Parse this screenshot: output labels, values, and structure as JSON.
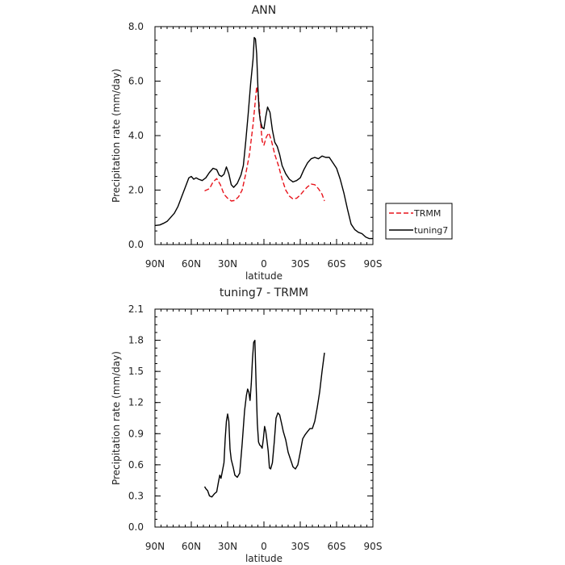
{
  "chart_data": [
    {
      "type": "line",
      "title": "ANN",
      "xlabel": "latitude",
      "ylabel": "Precipitation rate (mm/day)",
      "xlim": [
        90,
        -90
      ],
      "ylim": [
        0,
        8
      ],
      "x_ticks": [
        90,
        60,
        30,
        0,
        -30,
        -60,
        -90
      ],
      "x_tick_labels": [
        "90N",
        "60N",
        "30N",
        "0",
        "30S",
        "60S",
        "90S"
      ],
      "y_ticks": [
        0,
        2,
        4,
        6,
        8
      ],
      "y_tick_labels": [
        "0.0",
        "2.0",
        "4.0",
        "6.0",
        "8.0"
      ],
      "legend_position": "right",
      "series": [
        {
          "name": "TRMM",
          "color": "#e8141c",
          "dash": "dashed",
          "points": [
            [
              49,
              1.97
            ],
            [
              45,
              2.05
            ],
            [
              42,
              2.3
            ],
            [
              39,
              2.42
            ],
            [
              36,
              2.2
            ],
            [
              33,
              1.85
            ],
            [
              30,
              1.7
            ],
            [
              27,
              1.6
            ],
            [
              24,
              1.62
            ],
            [
              21,
              1.75
            ],
            [
              18,
              2.0
            ],
            [
              15,
              2.6
            ],
            [
              12,
              3.3
            ],
            [
              9,
              4.4
            ],
            [
              6,
              5.8
            ],
            [
              4.5,
              5.4
            ],
            [
              3,
              4.6
            ],
            [
              1.5,
              3.8
            ],
            [
              0,
              3.65
            ],
            [
              -2,
              3.95
            ],
            [
              -4,
              4.1
            ],
            [
              -6,
              3.85
            ],
            [
              -9,
              3.3
            ],
            [
              -12,
              2.9
            ],
            [
              -15,
              2.4
            ],
            [
              -18,
              2.0
            ],
            [
              -21,
              1.78
            ],
            [
              -24,
              1.67
            ],
            [
              -27,
              1.7
            ],
            [
              -30,
              1.82
            ],
            [
              -33,
              1.98
            ],
            [
              -36,
              2.12
            ],
            [
              -39,
              2.22
            ],
            [
              -42,
              2.2
            ],
            [
              -45,
              2.05
            ],
            [
              -48,
              1.85
            ],
            [
              -50,
              1.6
            ]
          ]
        },
        {
          "name": "tuning7",
          "color": "#000000",
          "dash": "solid",
          "points": [
            [
              90,
              0.7
            ],
            [
              86,
              0.72
            ],
            [
              83,
              0.78
            ],
            [
              80,
              0.85
            ],
            [
              77,
              1.0
            ],
            [
              74,
              1.15
            ],
            [
              71,
              1.4
            ],
            [
              68,
              1.75
            ],
            [
              65,
              2.1
            ],
            [
              62,
              2.45
            ],
            [
              60,
              2.5
            ],
            [
              58,
              2.4
            ],
            [
              56,
              2.45
            ],
            [
              54,
              2.4
            ],
            [
              51,
              2.35
            ],
            [
              48,
              2.45
            ],
            [
              45,
              2.65
            ],
            [
              42,
              2.8
            ],
            [
              39,
              2.75
            ],
            [
              37,
              2.55
            ],
            [
              35,
              2.5
            ],
            [
              33,
              2.58
            ],
            [
              31,
              2.85
            ],
            [
              29,
              2.6
            ],
            [
              27,
              2.2
            ],
            [
              25,
              2.1
            ],
            [
              22,
              2.25
            ],
            [
              19,
              2.55
            ],
            [
              17,
              2.9
            ],
            [
              15,
              3.8
            ],
            [
              13,
              4.8
            ],
            [
              11,
              5.9
            ],
            [
              9,
              6.8
            ],
            [
              8,
              7.6
            ],
            [
              7,
              7.55
            ],
            [
              6,
              7.0
            ],
            [
              5,
              5.8
            ],
            [
              4,
              4.9
            ],
            [
              3,
              4.55
            ],
            [
              1.5,
              4.3
            ],
            [
              0,
              4.25
            ],
            [
              -1.5,
              4.7
            ],
            [
              -3,
              5.05
            ],
            [
              -5,
              4.85
            ],
            [
              -7,
              4.2
            ],
            [
              -9,
              3.75
            ],
            [
              -11,
              3.6
            ],
            [
              -13,
              3.3
            ],
            [
              -15,
              2.9
            ],
            [
              -18,
              2.6
            ],
            [
              -21,
              2.4
            ],
            [
              -24,
              2.3
            ],
            [
              -27,
              2.35
            ],
            [
              -30,
              2.45
            ],
            [
              -33,
              2.75
            ],
            [
              -36,
              3.0
            ],
            [
              -39,
              3.15
            ],
            [
              -42,
              3.2
            ],
            [
              -45,
              3.15
            ],
            [
              -48,
              3.25
            ],
            [
              -51,
              3.2
            ],
            [
              -54,
              3.2
            ],
            [
              -57,
              3.0
            ],
            [
              -60,
              2.8
            ],
            [
              -63,
              2.4
            ],
            [
              -66,
              1.9
            ],
            [
              -69,
              1.3
            ],
            [
              -72,
              0.75
            ],
            [
              -75,
              0.55
            ],
            [
              -78,
              0.45
            ],
            [
              -81,
              0.4
            ],
            [
              -84,
              0.28
            ],
            [
              -87,
              0.22
            ],
            [
              -90,
              0.22
            ]
          ]
        }
      ]
    },
    {
      "type": "line",
      "title": "tuning7 - TRMM",
      "xlabel": "latitude",
      "ylabel": "Precipitation rate (mm/day)",
      "xlim": [
        90,
        -90
      ],
      "ylim": [
        0,
        2.1
      ],
      "x_ticks": [
        90,
        60,
        30,
        0,
        -30,
        -60,
        -90
      ],
      "x_tick_labels": [
        "90N",
        "60N",
        "30N",
        "0",
        "30S",
        "60S",
        "90S"
      ],
      "y_ticks": [
        0,
        0.3,
        0.6,
        0.9,
        1.2,
        1.5,
        1.8,
        2.1
      ],
      "y_tick_labels": [
        "0.0",
        "0.3",
        "0.6",
        "0.9",
        "1.2",
        "1.5",
        "1.8",
        "2.1"
      ],
      "series": [
        {
          "name": "",
          "color": "#000000",
          "dash": "solid",
          "points": [
            [
              49,
              0.39
            ],
            [
              48,
              0.37
            ],
            [
              46.5,
              0.35
            ],
            [
              45,
              0.3
            ],
            [
              43,
              0.29
            ],
            [
              41,
              0.32
            ],
            [
              39,
              0.34
            ],
            [
              37.5,
              0.44
            ],
            [
              36.5,
              0.5
            ],
            [
              35.5,
              0.47
            ],
            [
              34.5,
              0.53
            ],
            [
              33,
              0.62
            ],
            [
              32,
              0.85
            ],
            [
              31,
              1.02
            ],
            [
              30,
              1.09
            ],
            [
              29,
              1.02
            ],
            [
              28,
              0.75
            ],
            [
              27,
              0.65
            ],
            [
              25.5,
              0.58
            ],
            [
              24,
              0.5
            ],
            [
              22,
              0.48
            ],
            [
              20,
              0.52
            ],
            [
              18,
              0.8
            ],
            [
              16,
              1.12
            ],
            [
              14.5,
              1.27
            ],
            [
              13.5,
              1.33
            ],
            [
              12.5,
              1.3
            ],
            [
              11.5,
              1.22
            ],
            [
              10.5,
              1.38
            ],
            [
              9.5,
              1.62
            ],
            [
              8.5,
              1.78
            ],
            [
              7.5,
              1.8
            ],
            [
              6.5,
              1.38
            ],
            [
              5.5,
              1.0
            ],
            [
              4.5,
              0.82
            ],
            [
              3.5,
              0.79
            ],
            [
              2.5,
              0.78
            ],
            [
              1.5,
              0.76
            ],
            [
              0.5,
              0.85
            ],
            [
              -0.5,
              0.97
            ],
            [
              -1.5,
              0.92
            ],
            [
              -2.5,
              0.83
            ],
            [
              -3.5,
              0.73
            ],
            [
              -4.5,
              0.57
            ],
            [
              -5.5,
              0.56
            ],
            [
              -7,
              0.62
            ],
            [
              -8.5,
              0.82
            ],
            [
              -10,
              1.05
            ],
            [
              -11.5,
              1.1
            ],
            [
              -13,
              1.08
            ],
            [
              -14.5,
              1.0
            ],
            [
              -16,
              0.92
            ],
            [
              -18,
              0.84
            ],
            [
              -20,
              0.72
            ],
            [
              -22,
              0.65
            ],
            [
              -24,
              0.58
            ],
            [
              -26,
              0.56
            ],
            [
              -28,
              0.6
            ],
            [
              -30,
              0.72
            ],
            [
              -32,
              0.85
            ],
            [
              -34,
              0.89
            ],
            [
              -36,
              0.92
            ],
            [
              -38,
              0.95
            ],
            [
              -40,
              0.95
            ],
            [
              -42,
              1.02
            ],
            [
              -44,
              1.15
            ],
            [
              -46,
              1.3
            ],
            [
              -48,
              1.5
            ],
            [
              -50,
              1.68
            ]
          ]
        }
      ]
    }
  ]
}
